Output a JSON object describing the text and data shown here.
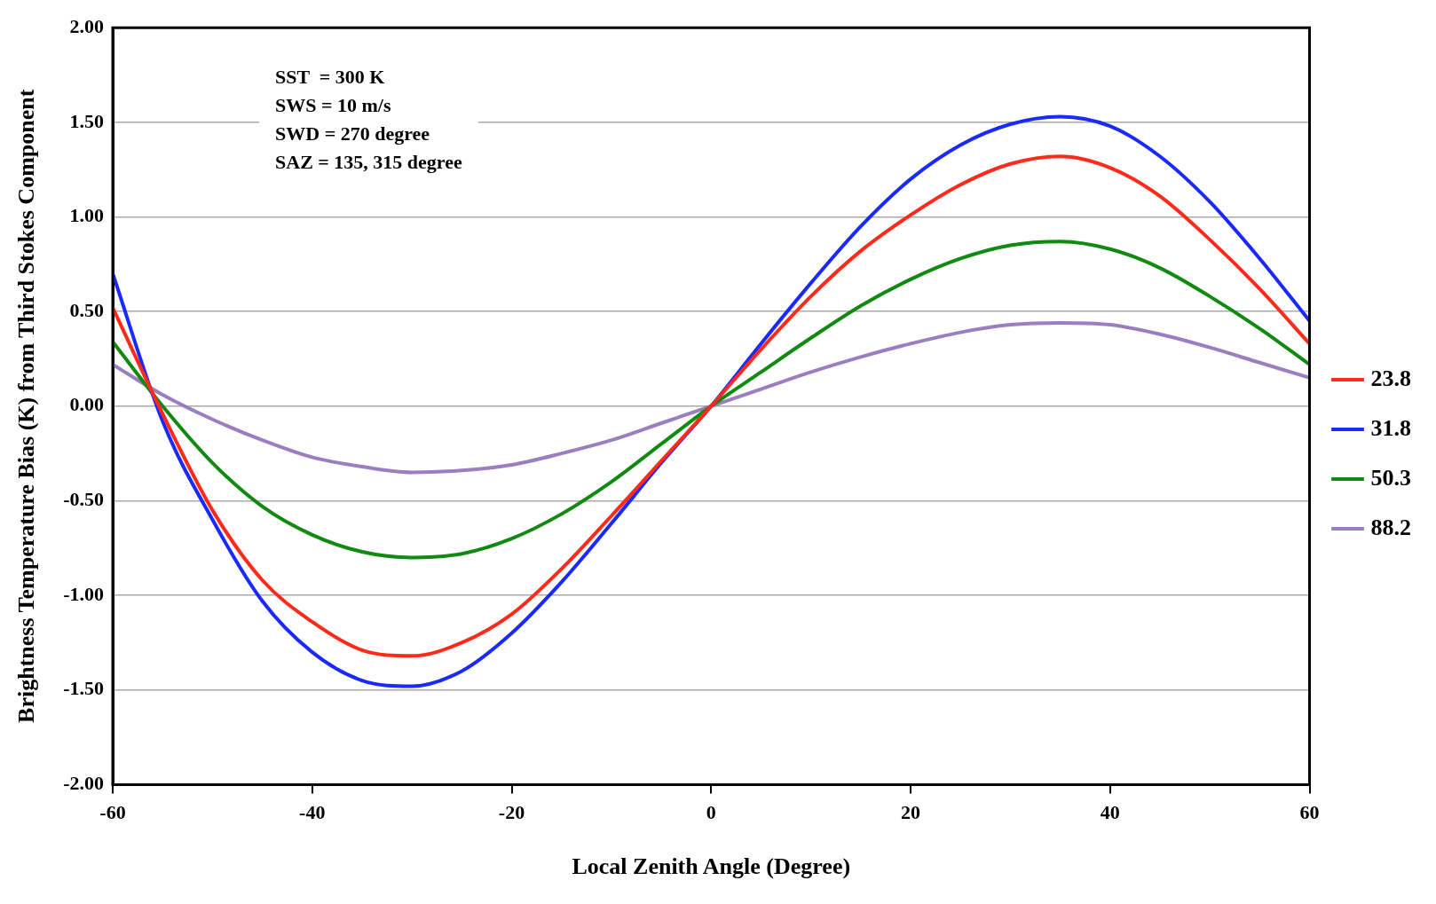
{
  "chart_data": {
    "type": "line",
    "xlabel": "Local Zenith Angle (Degree)",
    "ylabel": "Brightness Temperature Bias (K) from Third Stokes Component",
    "annotations": [
      "SST  = 300 K",
      "SWS = 10 m/s",
      "SWD = 270 degree",
      "SAZ = 135, 315 degree"
    ],
    "x": [
      -60,
      -55,
      -50,
      -45,
      -40,
      -35,
      -30,
      -25,
      -20,
      -15,
      -10,
      -5,
      0,
      5,
      10,
      15,
      20,
      25,
      30,
      35,
      40,
      45,
      50,
      55,
      60
    ],
    "series": [
      {
        "name": "23.8",
        "color": "#ff2a1a",
        "values": [
          0.52,
          -0.04,
          -0.55,
          -0.92,
          -1.14,
          -1.29,
          -1.32,
          -1.25,
          -1.1,
          -0.86,
          -0.58,
          -0.29,
          0,
          0.3,
          0.58,
          0.82,
          1.01,
          1.17,
          1.28,
          1.32,
          1.26,
          1.11,
          0.88,
          0.62,
          0.33
        ]
      },
      {
        "name": "31.8",
        "color": "#1a2aff",
        "values": [
          0.7,
          -0.08,
          -0.6,
          -1.03,
          -1.3,
          -1.45,
          -1.48,
          -1.4,
          -1.2,
          -0.93,
          -0.62,
          -0.3,
          0,
          0.33,
          0.65,
          0.95,
          1.2,
          1.38,
          1.49,
          1.53,
          1.48,
          1.32,
          1.08,
          0.78,
          0.45
        ]
      },
      {
        "name": "50.3",
        "color": "#118a11",
        "values": [
          0.34,
          0,
          -0.3,
          -0.53,
          -0.68,
          -0.77,
          -0.8,
          -0.78,
          -0.7,
          -0.57,
          -0.4,
          -0.2,
          0,
          0.18,
          0.36,
          0.53,
          0.67,
          0.78,
          0.85,
          0.87,
          0.83,
          0.73,
          0.58,
          0.41,
          0.22
        ]
      },
      {
        "name": "88.2",
        "color": "#9a7ec0",
        "values": [
          0.22,
          0.06,
          -0.07,
          -0.18,
          -0.27,
          -0.32,
          -0.35,
          -0.34,
          -0.31,
          -0.25,
          -0.18,
          -0.09,
          0,
          0.09,
          0.18,
          0.26,
          0.33,
          0.39,
          0.43,
          0.44,
          0.43,
          0.38,
          0.31,
          0.23,
          0.15
        ]
      }
    ],
    "xlim": [
      -60,
      60
    ],
    "xticks": [
      -60,
      -40,
      -20,
      0,
      20,
      40,
      60
    ],
    "ylim": [
      -2,
      2
    ],
    "yticks": [
      {
        "value": -2,
        "label": "-2.00"
      },
      {
        "value": -1.5,
        "label": "-1.50"
      },
      {
        "value": -1,
        "label": "-1.00"
      },
      {
        "value": -0.5,
        "label": "-0.50"
      },
      {
        "value": 0,
        "label": "0.00"
      },
      {
        "value": 0.5,
        "label": "0.50"
      },
      {
        "value": 1,
        "label": "1.00"
      },
      {
        "value": 1.5,
        "label": "1.50"
      },
      {
        "value": 2,
        "label": "2.00"
      }
    ],
    "grid": "y",
    "legend": "right",
    "marker": "none",
    "line_style": "solid"
  }
}
